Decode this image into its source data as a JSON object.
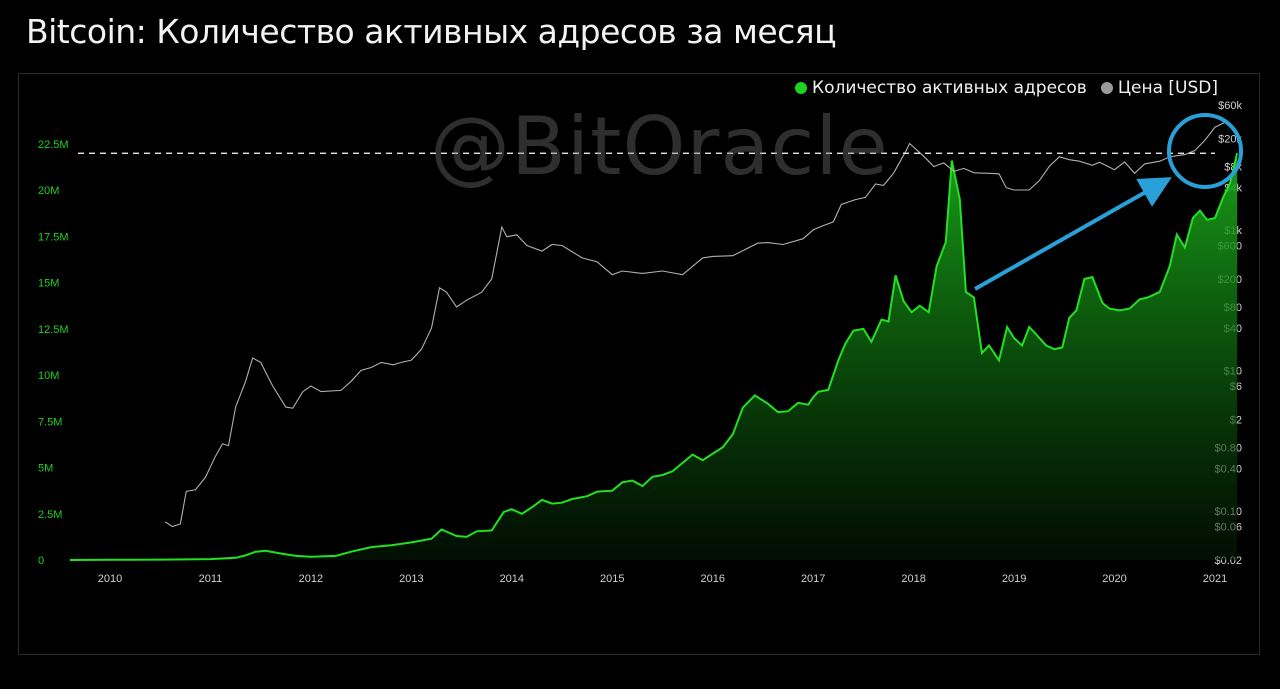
{
  "page": {
    "title": "Bitcoin: Количество активных адресов за месяц"
  },
  "watermark": "@BitOracle",
  "legend": [
    {
      "label": "Количество активных адресов",
      "color": "#1fd21f"
    },
    {
      "label": "Цена [USD]",
      "color": "#9a9a9a"
    }
  ],
  "chart_data": {
    "type": "area",
    "x_ticks": [
      "2010",
      "2011",
      "2012",
      "2013",
      "2014",
      "2015",
      "2016",
      "2017",
      "2018",
      "2019",
      "2020",
      "2021"
    ],
    "y_left_ticks": [
      {
        "v": 0,
        "label": "0"
      },
      {
        "v": 2.5,
        "label": "2.5M"
      },
      {
        "v": 5,
        "label": "5M"
      },
      {
        "v": 7.5,
        "label": "7.5M"
      },
      {
        "v": 10,
        "label": "10M"
      },
      {
        "v": 12.5,
        "label": "12.5M"
      },
      {
        "v": 15,
        "label": "15M"
      },
      {
        "v": 17.5,
        "label": "17.5M"
      },
      {
        "v": 20,
        "label": "20M"
      },
      {
        "v": 22.5,
        "label": "22.5M"
      }
    ],
    "y_right_ticks": [
      {
        "v": 0.02,
        "label": "$0.02"
      },
      {
        "v": 0.06,
        "label": "$0.06"
      },
      {
        "v": 0.1,
        "label": "$0.10"
      },
      {
        "v": 0.4,
        "label": "$0.40"
      },
      {
        "v": 0.8,
        "label": "$0.80"
      },
      {
        "v": 2,
        "label": "$2"
      },
      {
        "v": 6,
        "label": "$6"
      },
      {
        "v": 10,
        "label": "$10"
      },
      {
        "v": 40,
        "label": "$40"
      },
      {
        "v": 80,
        "label": "$80"
      },
      {
        "v": 200,
        "label": "$200"
      },
      {
        "v": 600,
        "label": "$600"
      },
      {
        "v": 1000,
        "label": "$1k"
      },
      {
        "v": 4000,
        "label": "$4k"
      },
      {
        "v": 8000,
        "label": "$8k"
      },
      {
        "v": 20000,
        "label": "$20k"
      },
      {
        "v": 60000,
        "label": "$60k"
      }
    ],
    "y_left_range": [
      0,
      23.5
    ],
    "y_right_range": [
      0.02,
      60000
    ],
    "y_right_scale": "log",
    "reference_line": {
      "value": 22.0,
      "style": "dashed"
    },
    "series": [
      {
        "name": "Количество активных адресов",
        "unit": "M",
        "points": [
          [
            2009.6,
            0.0
          ],
          [
            2010.0,
            0.01
          ],
          [
            2010.5,
            0.02
          ],
          [
            2011.0,
            0.05
          ],
          [
            2011.25,
            0.12
          ],
          [
            2011.35,
            0.25
          ],
          [
            2011.45,
            0.45
          ],
          [
            2011.55,
            0.5
          ],
          [
            2011.7,
            0.35
          ],
          [
            2011.85,
            0.22
          ],
          [
            2012.0,
            0.18
          ],
          [
            2012.25,
            0.22
          ],
          [
            2012.4,
            0.45
          ],
          [
            2012.6,
            0.7
          ],
          [
            2012.8,
            0.8
          ],
          [
            2013.0,
            0.95
          ],
          [
            2013.2,
            1.15
          ],
          [
            2013.3,
            1.65
          ],
          [
            2013.45,
            1.3
          ],
          [
            2013.55,
            1.25
          ],
          [
            2013.65,
            1.55
          ],
          [
            2013.8,
            1.6
          ],
          [
            2013.92,
            2.6
          ],
          [
            2014.0,
            2.75
          ],
          [
            2014.1,
            2.5
          ],
          [
            2014.2,
            2.85
          ],
          [
            2014.3,
            3.25
          ],
          [
            2014.4,
            3.05
          ],
          [
            2014.5,
            3.1
          ],
          [
            2014.6,
            3.3
          ],
          [
            2014.75,
            3.45
          ],
          [
            2014.85,
            3.7
          ],
          [
            2015.0,
            3.75
          ],
          [
            2015.1,
            4.2
          ],
          [
            2015.2,
            4.3
          ],
          [
            2015.3,
            4.0
          ],
          [
            2015.4,
            4.5
          ],
          [
            2015.5,
            4.6
          ],
          [
            2015.6,
            4.8
          ],
          [
            2015.7,
            5.25
          ],
          [
            2015.8,
            5.7
          ],
          [
            2015.9,
            5.4
          ],
          [
            2016.0,
            5.75
          ],
          [
            2016.1,
            6.1
          ],
          [
            2016.2,
            6.8
          ],
          [
            2016.3,
            8.25
          ],
          [
            2016.42,
            8.9
          ],
          [
            2016.55,
            8.45
          ],
          [
            2016.65,
            8.0
          ],
          [
            2016.75,
            8.05
          ],
          [
            2016.85,
            8.5
          ],
          [
            2016.95,
            8.4
          ],
          [
            2017.0,
            8.8
          ],
          [
            2017.05,
            9.1
          ],
          [
            2017.15,
            9.2
          ],
          [
            2017.25,
            10.8
          ],
          [
            2017.32,
            11.7
          ],
          [
            2017.4,
            12.4
          ],
          [
            2017.5,
            12.5
          ],
          [
            2017.58,
            11.8
          ],
          [
            2017.68,
            13.0
          ],
          [
            2017.75,
            12.9
          ],
          [
            2017.82,
            15.4
          ],
          [
            2017.9,
            14.0
          ],
          [
            2017.98,
            13.4
          ],
          [
            2018.06,
            13.75
          ],
          [
            2018.15,
            13.4
          ],
          [
            2018.23,
            15.9
          ],
          [
            2018.32,
            17.2
          ],
          [
            2018.38,
            21.6
          ],
          [
            2018.46,
            19.5
          ],
          [
            2018.52,
            14.5
          ],
          [
            2018.6,
            14.2
          ],
          [
            2018.68,
            11.2
          ],
          [
            2018.75,
            11.6
          ],
          [
            2018.85,
            10.8
          ],
          [
            2018.93,
            12.6
          ],
          [
            2019.0,
            12.0
          ],
          [
            2019.08,
            11.6
          ],
          [
            2019.15,
            12.6
          ],
          [
            2019.22,
            12.2
          ],
          [
            2019.32,
            11.6
          ],
          [
            2019.4,
            11.4
          ],
          [
            2019.48,
            11.5
          ],
          [
            2019.55,
            13.1
          ],
          [
            2019.62,
            13.5
          ],
          [
            2019.7,
            15.2
          ],
          [
            2019.78,
            15.3
          ],
          [
            2019.88,
            13.9
          ],
          [
            2019.95,
            13.6
          ],
          [
            2020.05,
            13.5
          ],
          [
            2020.15,
            13.6
          ],
          [
            2020.25,
            14.1
          ],
          [
            2020.33,
            14.2
          ],
          [
            2020.45,
            14.5
          ],
          [
            2020.55,
            15.9
          ],
          [
            2020.62,
            17.6
          ],
          [
            2020.7,
            16.9
          ],
          [
            2020.78,
            18.5
          ],
          [
            2020.85,
            18.9
          ],
          [
            2020.92,
            18.4
          ],
          [
            2021.0,
            18.5
          ],
          [
            2021.08,
            19.6
          ],
          [
            2021.15,
            20.4
          ],
          [
            2021.22,
            22.0
          ]
        ]
      },
      {
        "name": "Цена [USD]",
        "points": [
          [
            2010.55,
            0.07
          ],
          [
            2010.62,
            0.06
          ],
          [
            2010.7,
            0.065
          ],
          [
            2010.76,
            0.19
          ],
          [
            2010.85,
            0.2
          ],
          [
            2010.95,
            0.3
          ],
          [
            2011.05,
            0.6
          ],
          [
            2011.12,
            0.9
          ],
          [
            2011.18,
            0.85
          ],
          [
            2011.25,
            3
          ],
          [
            2011.35,
            7
          ],
          [
            2011.42,
            15
          ],
          [
            2011.5,
            13
          ],
          [
            2011.62,
            6
          ],
          [
            2011.75,
            3
          ],
          [
            2011.82,
            2.9
          ],
          [
            2011.92,
            5
          ],
          [
            2012.0,
            6
          ],
          [
            2012.1,
            5
          ],
          [
            2012.3,
            5.2
          ],
          [
            2012.4,
            7
          ],
          [
            2012.5,
            10
          ],
          [
            2012.6,
            11
          ],
          [
            2012.7,
            13
          ],
          [
            2012.82,
            12
          ],
          [
            2012.9,
            13
          ],
          [
            2013.0,
            14
          ],
          [
            2013.1,
            20
          ],
          [
            2013.2,
            40
          ],
          [
            2013.28,
            150
          ],
          [
            2013.35,
            130
          ],
          [
            2013.45,
            80
          ],
          [
            2013.55,
            100
          ],
          [
            2013.7,
            130
          ],
          [
            2013.8,
            200
          ],
          [
            2013.9,
            1100
          ],
          [
            2013.95,
            800
          ],
          [
            2014.05,
            850
          ],
          [
            2014.15,
            600
          ],
          [
            2014.3,
            500
          ],
          [
            2014.4,
            620
          ],
          [
            2014.5,
            600
          ],
          [
            2014.7,
            400
          ],
          [
            2014.85,
            350
          ],
          [
            2015.0,
            230
          ],
          [
            2015.1,
            260
          ],
          [
            2015.3,
            240
          ],
          [
            2015.5,
            260
          ],
          [
            2015.7,
            230
          ],
          [
            2015.9,
            400
          ],
          [
            2016.0,
            420
          ],
          [
            2016.2,
            430
          ],
          [
            2016.45,
            650
          ],
          [
            2016.55,
            660
          ],
          [
            2016.7,
            620
          ],
          [
            2016.9,
            750
          ],
          [
            2017.0,
            1000
          ],
          [
            2017.1,
            1150
          ],
          [
            2017.2,
            1300
          ],
          [
            2017.28,
            2300
          ],
          [
            2017.35,
            2500
          ],
          [
            2017.42,
            2700
          ],
          [
            2017.52,
            2900
          ],
          [
            2017.62,
            4500
          ],
          [
            2017.7,
            4300
          ],
          [
            2017.8,
            6400
          ],
          [
            2017.92,
            13000
          ],
          [
            2017.96,
            17000
          ],
          [
            2018.05,
            13000
          ],
          [
            2018.12,
            10500
          ],
          [
            2018.2,
            8000
          ],
          [
            2018.3,
            9000
          ],
          [
            2018.4,
            6800
          ],
          [
            2018.5,
            7500
          ],
          [
            2018.6,
            6500
          ],
          [
            2018.75,
            6400
          ],
          [
            2018.85,
            6300
          ],
          [
            2018.92,
            4000
          ],
          [
            2019.0,
            3700
          ],
          [
            2019.15,
            3700
          ],
          [
            2019.25,
            5000
          ],
          [
            2019.35,
            8000
          ],
          [
            2019.45,
            11000
          ],
          [
            2019.55,
            10000
          ],
          [
            2019.65,
            9500
          ],
          [
            2019.78,
            8300
          ],
          [
            2019.85,
            9200
          ],
          [
            2020.0,
            7200
          ],
          [
            2020.1,
            9300
          ],
          [
            2020.2,
            6400
          ],
          [
            2020.3,
            8700
          ],
          [
            2020.45,
            9500
          ],
          [
            2020.55,
            11000
          ],
          [
            2020.7,
            11800
          ],
          [
            2020.8,
            13500
          ],
          [
            2020.9,
            19000
          ],
          [
            2021.0,
            29000
          ],
          [
            2021.08,
            33000
          ],
          [
            2021.12,
            35000
          ]
        ]
      }
    ]
  }
}
